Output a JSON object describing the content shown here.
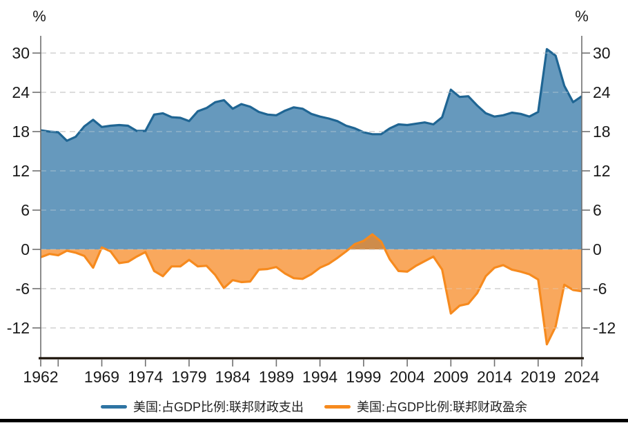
{
  "chart_data": {
    "type": "area",
    "title": "",
    "unit_left": "%",
    "unit_right": "%",
    "baseline": 0,
    "grid": "horizontal dashed",
    "legend_position": "bottom",
    "xlim": [
      1962,
      2024
    ],
    "ylim": [
      -16.6,
      32.6
    ],
    "y_ticks": [
      30,
      24,
      18,
      12,
      6,
      0,
      -6,
      -12
    ],
    "x_tick_labels": [
      1962,
      1969,
      1974,
      1979,
      1984,
      1989,
      1994,
      1999,
      2004,
      2009,
      2014,
      2019,
      2024
    ],
    "x_unlabeled_ticks": [
      1964
    ],
    "x": [
      1962,
      1963,
      1964,
      1965,
      1966,
      1967,
      1968,
      1969,
      1970,
      1971,
      1972,
      1973,
      1974,
      1975,
      1976,
      1977,
      1978,
      1979,
      1980,
      1981,
      1982,
      1983,
      1984,
      1985,
      1986,
      1987,
      1988,
      1989,
      1990,
      1991,
      1992,
      1993,
      1994,
      1995,
      1996,
      1997,
      1998,
      1999,
      2000,
      2001,
      2002,
      2003,
      2004,
      2005,
      2006,
      2007,
      2008,
      2009,
      2010,
      2011,
      2012,
      2013,
      2014,
      2015,
      2016,
      2017,
      2018,
      2019,
      2020,
      2021,
      2022,
      2023,
      2024
    ],
    "series": [
      {
        "name": "美国:占GDP比例:联邦财政支出",
        "color": "#2e74a3",
        "line_color": "#1f6593",
        "fill_color": "#3b7caa",
        "fill_opacity": 0.78,
        "values": [
          18.2,
          18.0,
          17.9,
          16.6,
          17.2,
          18.8,
          19.8,
          18.7,
          18.9,
          19.0,
          18.9,
          18.1,
          18.1,
          20.6,
          20.8,
          20.2,
          20.1,
          19.6,
          21.1,
          21.6,
          22.5,
          22.8,
          21.5,
          22.2,
          21.8,
          21.0,
          20.6,
          20.5,
          21.2,
          21.7,
          21.5,
          20.7,
          20.3,
          20.0,
          19.6,
          18.9,
          18.5,
          17.9,
          17.6,
          17.6,
          18.5,
          19.1,
          19.0,
          19.2,
          19.4,
          19.1,
          20.2,
          24.4,
          23.3,
          23.4,
          22.0,
          20.8,
          20.3,
          20.5,
          20.9,
          20.7,
          20.3,
          21.0,
          30.6,
          29.6,
          25.0,
          22.5,
          23.4
        ]
      },
      {
        "name": "美国:占GDP比例:联邦财政盈余",
        "color": "#f68a1e",
        "line_color": "#f68a1e",
        "fill_color": "#f7861e",
        "fill_opacity": 0.72,
        "values": [
          -1.2,
          -0.7,
          -0.9,
          -0.2,
          -0.5,
          -1.0,
          -2.8,
          0.3,
          -0.3,
          -2.1,
          -1.9,
          -1.1,
          -0.4,
          -3.3,
          -4.1,
          -2.6,
          -2.6,
          -1.6,
          -2.6,
          -2.5,
          -3.9,
          -5.9,
          -4.7,
          -5.0,
          -4.9,
          -3.1,
          -3.0,
          -2.7,
          -3.7,
          -4.4,
          -4.5,
          -3.8,
          -2.8,
          -2.2,
          -1.3,
          -0.3,
          0.8,
          1.3,
          2.3,
          1.2,
          -1.5,
          -3.3,
          -3.4,
          -2.5,
          -1.8,
          -1.1,
          -3.1,
          -9.8,
          -8.6,
          -8.3,
          -6.7,
          -4.1,
          -2.8,
          -2.4,
          -3.1,
          -3.4,
          -3.8,
          -4.6,
          -14.5,
          -11.8,
          -5.4,
          -6.2,
          -6.4
        ]
      }
    ],
    "colors": {
      "grid_under": "#bfbfbf",
      "grid_over": "rgba(255,255,255,0.35)",
      "axis_line": "#6f6f6f",
      "x_axis_line": "#1b1208",
      "tick_text": "#1a1a1a"
    }
  }
}
